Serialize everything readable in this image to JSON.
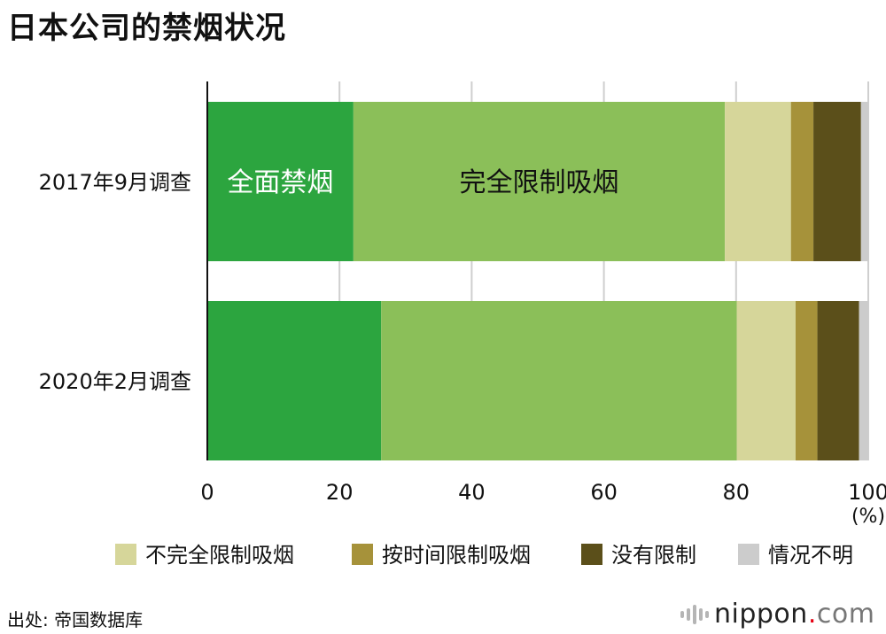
{
  "title": "日本公司的禁烟状况",
  "source": "出处: 帝国数据库",
  "logo": {
    "name": "nippon",
    "dot": ".",
    "suffix": "com"
  },
  "chart_data": {
    "type": "bar",
    "orientation": "horizontal",
    "stacked": true,
    "categories": [
      "2017年9月调查",
      "2020年2月调查"
    ],
    "series": [
      {
        "name": "全面禁烟",
        "color": "#2ca53f",
        "values": [
          22.1,
          26.3
        ]
      },
      {
        "name": "完全限制吸烟",
        "color": "#8bbf59",
        "values": [
          56.2,
          53.8
        ]
      },
      {
        "name": "不完全限制吸烟",
        "color": "#d6d69a",
        "values": [
          10.0,
          8.9
        ]
      },
      {
        "name": "按时间限制吸烟",
        "color": "#a6923a",
        "values": [
          3.4,
          3.3
        ]
      },
      {
        "name": "没有限制",
        "color": "#5b4f1a",
        "values": [
          7.2,
          6.3
        ]
      },
      {
        "name": "情况不明",
        "color": "#cccccc",
        "values": [
          1.1,
          1.4
        ]
      }
    ],
    "bar_labels": [
      {
        "text": "全面禁烟",
        "series": 0,
        "category": 0,
        "color": "#ffffff"
      },
      {
        "text": "完全限制吸烟",
        "series": 1,
        "category": 0,
        "color": "#111111"
      }
    ],
    "xlim": [
      0,
      100
    ],
    "xticks": [
      "0",
      "20",
      "40",
      "60",
      "80",
      "100"
    ],
    "unit": "(%)",
    "legend": {
      "placement": "bottom",
      "entries": [
        "不完全限制吸烟",
        "按时间限制吸烟",
        "没有限制",
        "情况不明"
      ],
      "series_index": [
        2,
        3,
        4,
        5
      ]
    },
    "grid": true
  }
}
